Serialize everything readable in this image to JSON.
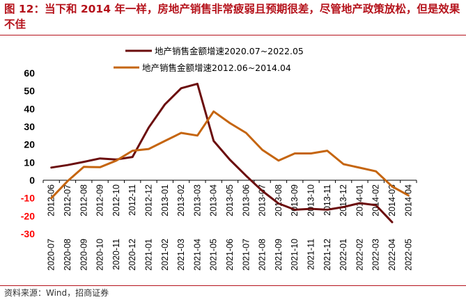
{
  "figure": {
    "title": "图 12：当下和 2014 年一样，房地产销售非常疲弱且预期很差，尽管地产政策放松，但是效果不佳",
    "source": "资料来源：Wind，招商证券"
  },
  "chart_data": {
    "type": "line",
    "title": "图 12：当下和 2014 年一样，房地产销售非常疲弱且预期很差，尽管地产政策放松，但是效果不佳",
    "ylim": [
      -30,
      60
    ],
    "yticks": [
      60,
      50,
      40,
      30,
      20,
      10,
      0,
      -10,
      -20,
      -30
    ],
    "grid": false,
    "legend_position": "top",
    "x_inner": [
      "2012-06",
      "2012-07",
      "2012-08",
      "2012-09",
      "2012-10",
      "2012-11",
      "2012-12",
      "2013-01",
      "2013-02",
      "2013-03",
      "2013-04",
      "2013-05",
      "2013-06",
      "2013-07",
      "2013-08",
      "2013-09",
      "2013-10",
      "2013-11",
      "2013-12",
      "2014-01",
      "2014-02",
      "2014-03",
      "2014-04"
    ],
    "x_outer": [
      "2020-07",
      "2020-08",
      "2020-09",
      "2020-10",
      "2020-11",
      "2020-12",
      "2021-01",
      "2021-02",
      "2021-03",
      "2021-04",
      "2021-05",
      "2021-06",
      "2021-07",
      "2021-08",
      "2021-09",
      "2021-10",
      "2021-11",
      "2021-12",
      "2022-01",
      "2022-02",
      "2022-03",
      "2022-04",
      "2022-05"
    ],
    "series": [
      {
        "name": "地产销售金额增速2020.07~2022.05",
        "color": "#6b0d0d",
        "x_axis": "outer",
        "values": [
          7.1,
          8.5,
          10.3,
          12.2,
          11.6,
          13.0,
          29.5,
          42.5,
          51.5,
          54.0,
          22.0,
          11.5,
          2.5,
          -6.0,
          -13.0,
          -16.5,
          -16.0,
          -16.5,
          -15.0,
          -12.8,
          -14.0,
          -23.5,
          null
        ]
      },
      {
        "name": "地产销售金额增速2012.06~2014.04",
        "color": "#c5650f",
        "x_axis": "inner",
        "values": [
          -10.0,
          -0.5,
          7.5,
          7.3,
          11.0,
          16.5,
          17.5,
          22.0,
          26.5,
          25.0,
          38.5,
          32.0,
          26.5,
          17.0,
          11.0,
          15.0,
          15.0,
          16.5,
          9.0,
          7.0,
          5.0,
          -3.5,
          -8.5
        ]
      }
    ]
  }
}
